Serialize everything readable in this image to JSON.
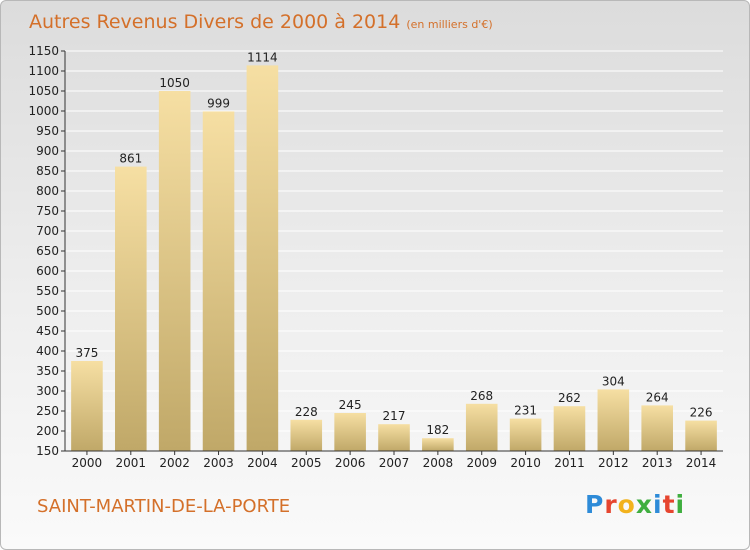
{
  "title": "Autres Revenus Divers de 2000 à 2014",
  "unit_note": "(en milliers d'€)",
  "commune": "SAINT-MARTIN-DE-LA-PORTE",
  "logo": {
    "letters": [
      "P",
      "r",
      "o",
      "x",
      "i",
      "t",
      "i"
    ]
  },
  "colors": {
    "title": "#d4702a",
    "bar_light": "#f6dfa3",
    "bar_dark": "#c0a868",
    "logo": [
      "#2e8bd8",
      "#e6452f",
      "#f2b21c",
      "#3fae3f",
      "#2e8bd8",
      "#e6452f",
      "#3fae3f"
    ]
  },
  "chart_data": {
    "type": "bar",
    "title": "Autres Revenus Divers de 2000 à 2014",
    "xlabel": "",
    "ylabel": "",
    "categories": [
      "2000",
      "2001",
      "2002",
      "2003",
      "2004",
      "2005",
      "2006",
      "2007",
      "2008",
      "2009",
      "2010",
      "2011",
      "2012",
      "2013",
      "2014"
    ],
    "values": [
      375,
      861,
      1050,
      999,
      1114,
      228,
      245,
      217,
      182,
      268,
      231,
      262,
      304,
      264,
      226
    ],
    "ylim": [
      150,
      1150
    ],
    "yticks": [
      150,
      200,
      250,
      300,
      350,
      400,
      450,
      500,
      550,
      600,
      650,
      700,
      750,
      800,
      850,
      900,
      950,
      1000,
      1050,
      1100,
      1150
    ],
    "grid": true
  }
}
